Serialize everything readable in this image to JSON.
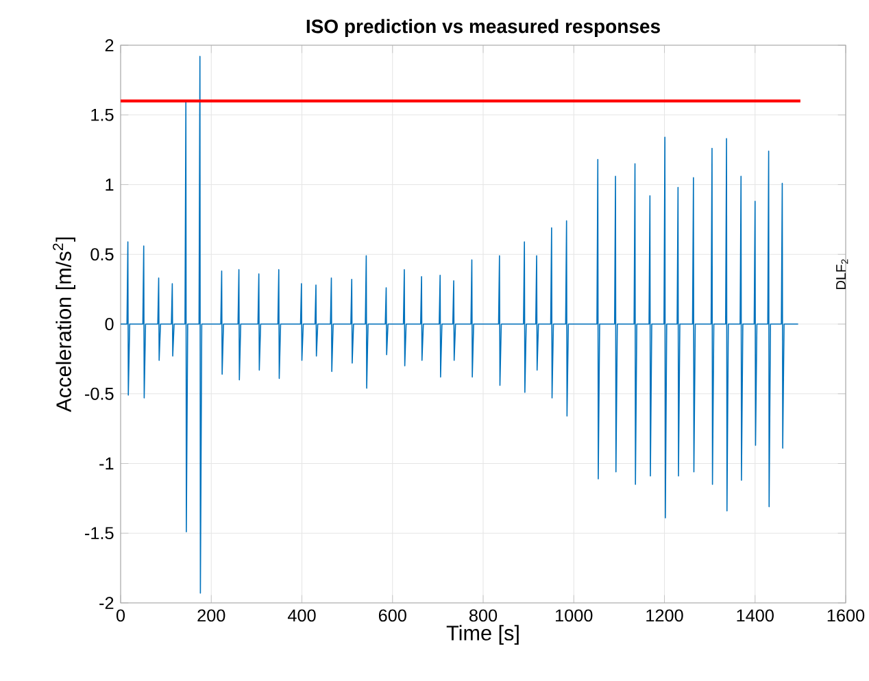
{
  "chart_data": {
    "type": "line",
    "title": "ISO prediction vs measured responses",
    "xlabel": "Time [s]",
    "ylabel": "Acceleration [m/s$^{2}$]",
    "xlim": [
      0,
      1600
    ],
    "ylim": [
      -2,
      2
    ],
    "xticks": [
      0,
      200,
      400,
      600,
      800,
      1000,
      1200,
      1400,
      1600
    ],
    "yticks": [
      -2,
      -1.5,
      -1,
      -0.5,
      0,
      0.5,
      1,
      1.5,
      2
    ],
    "grid": true,
    "annotations": [
      "DLF$_{2}$"
    ],
    "series": [
      {
        "color": "#0072bd",
        "x": [
          0,
          14,
          16,
          17,
          20,
          49,
          51,
          52,
          55,
          82,
          84,
          85,
          88,
          112,
          114,
          115,
          118,
          142,
          144,
          145,
          148,
          173,
          175,
          176,
          179,
          221,
          223,
          224,
          227,
          259,
          261,
          262,
          265,
          303,
          305,
          306,
          309,
          347,
          349,
          350,
          353,
          397,
          399,
          400,
          403,
          429,
          431,
          432,
          435,
          463,
          465,
          466,
          469,
          508,
          510,
          511,
          514,
          540,
          542,
          543,
          546,
          584,
          586,
          587,
          590,
          624,
          626,
          627,
          630,
          662,
          664,
          665,
          668,
          703,
          705,
          706,
          709,
          733,
          735,
          736,
          739,
          773,
          775,
          776,
          779,
          834,
          836,
          837,
          840,
          889,
          891,
          892,
          895,
          916,
          918,
          919,
          922,
          949,
          951,
          952,
          955,
          982,
          984,
          985,
          988,
          1051,
          1053,
          1054,
          1057,
          1090,
          1092,
          1093,
          1096,
          1133,
          1135,
          1136,
          1139,
          1166,
          1168,
          1169,
          1172,
          1199,
          1201,
          1202,
          1205,
          1228,
          1230,
          1231,
          1234,
          1262,
          1264,
          1265,
          1268,
          1303,
          1305,
          1306,
          1309,
          1335,
          1337,
          1338,
          1341,
          1367,
          1369,
          1370,
          1373,
          1398,
          1400,
          1401,
          1404,
          1428,
          1430,
          1431,
          1434,
          1458,
          1460,
          1461,
          1464,
          1495
        ],
        "values": [
          0,
          0,
          0.59,
          -0.51,
          0,
          0,
          0.56,
          -0.53,
          0,
          0,
          0.33,
          -0.26,
          0,
          0,
          0.29,
          -0.23,
          0,
          0,
          1.6,
          -1.49,
          0,
          0,
          1.92,
          -1.93,
          0,
          0,
          0.38,
          -0.36,
          0,
          0,
          0.39,
          -0.4,
          0,
          0,
          0.36,
          -0.33,
          0,
          0,
          0.39,
          -0.39,
          0,
          0,
          0.29,
          -0.26,
          0,
          0,
          0.28,
          -0.23,
          0,
          0,
          0.33,
          -0.34,
          0,
          0,
          0.32,
          -0.28,
          0,
          0,
          0.49,
          -0.46,
          0,
          0,
          0.26,
          -0.22,
          0,
          0,
          0.39,
          -0.3,
          0,
          0,
          0.34,
          -0.26,
          0,
          0,
          0.35,
          -0.38,
          0,
          0,
          0.31,
          -0.26,
          0,
          0,
          0.46,
          -0.38,
          0,
          0,
          0.49,
          -0.44,
          0,
          0,
          0.59,
          -0.49,
          0,
          0,
          0.49,
          -0.33,
          0,
          0,
          0.69,
          -0.53,
          0,
          0,
          0.74,
          -0.66,
          0,
          0,
          1.18,
          -1.11,
          0,
          0,
          1.06,
          -1.06,
          0,
          0,
          1.15,
          -1.15,
          0,
          0,
          0.92,
          -1.09,
          0,
          0,
          1.34,
          -1.39,
          0,
          0,
          0.98,
          -1.09,
          0,
          0,
          1.05,
          -1.06,
          0,
          0,
          1.26,
          -1.15,
          0,
          0,
          1.33,
          -1.34,
          0,
          0,
          1.06,
          -1.12,
          0,
          0,
          0.88,
          -0.87,
          0,
          0,
          1.24,
          -1.31,
          0,
          0,
          1.01,
          -0.89,
          0,
          0
        ]
      },
      {
        "color": "#ff0000",
        "x": [
          0,
          1500
        ],
        "values": [
          1.6,
          1.6
        ]
      }
    ]
  }
}
